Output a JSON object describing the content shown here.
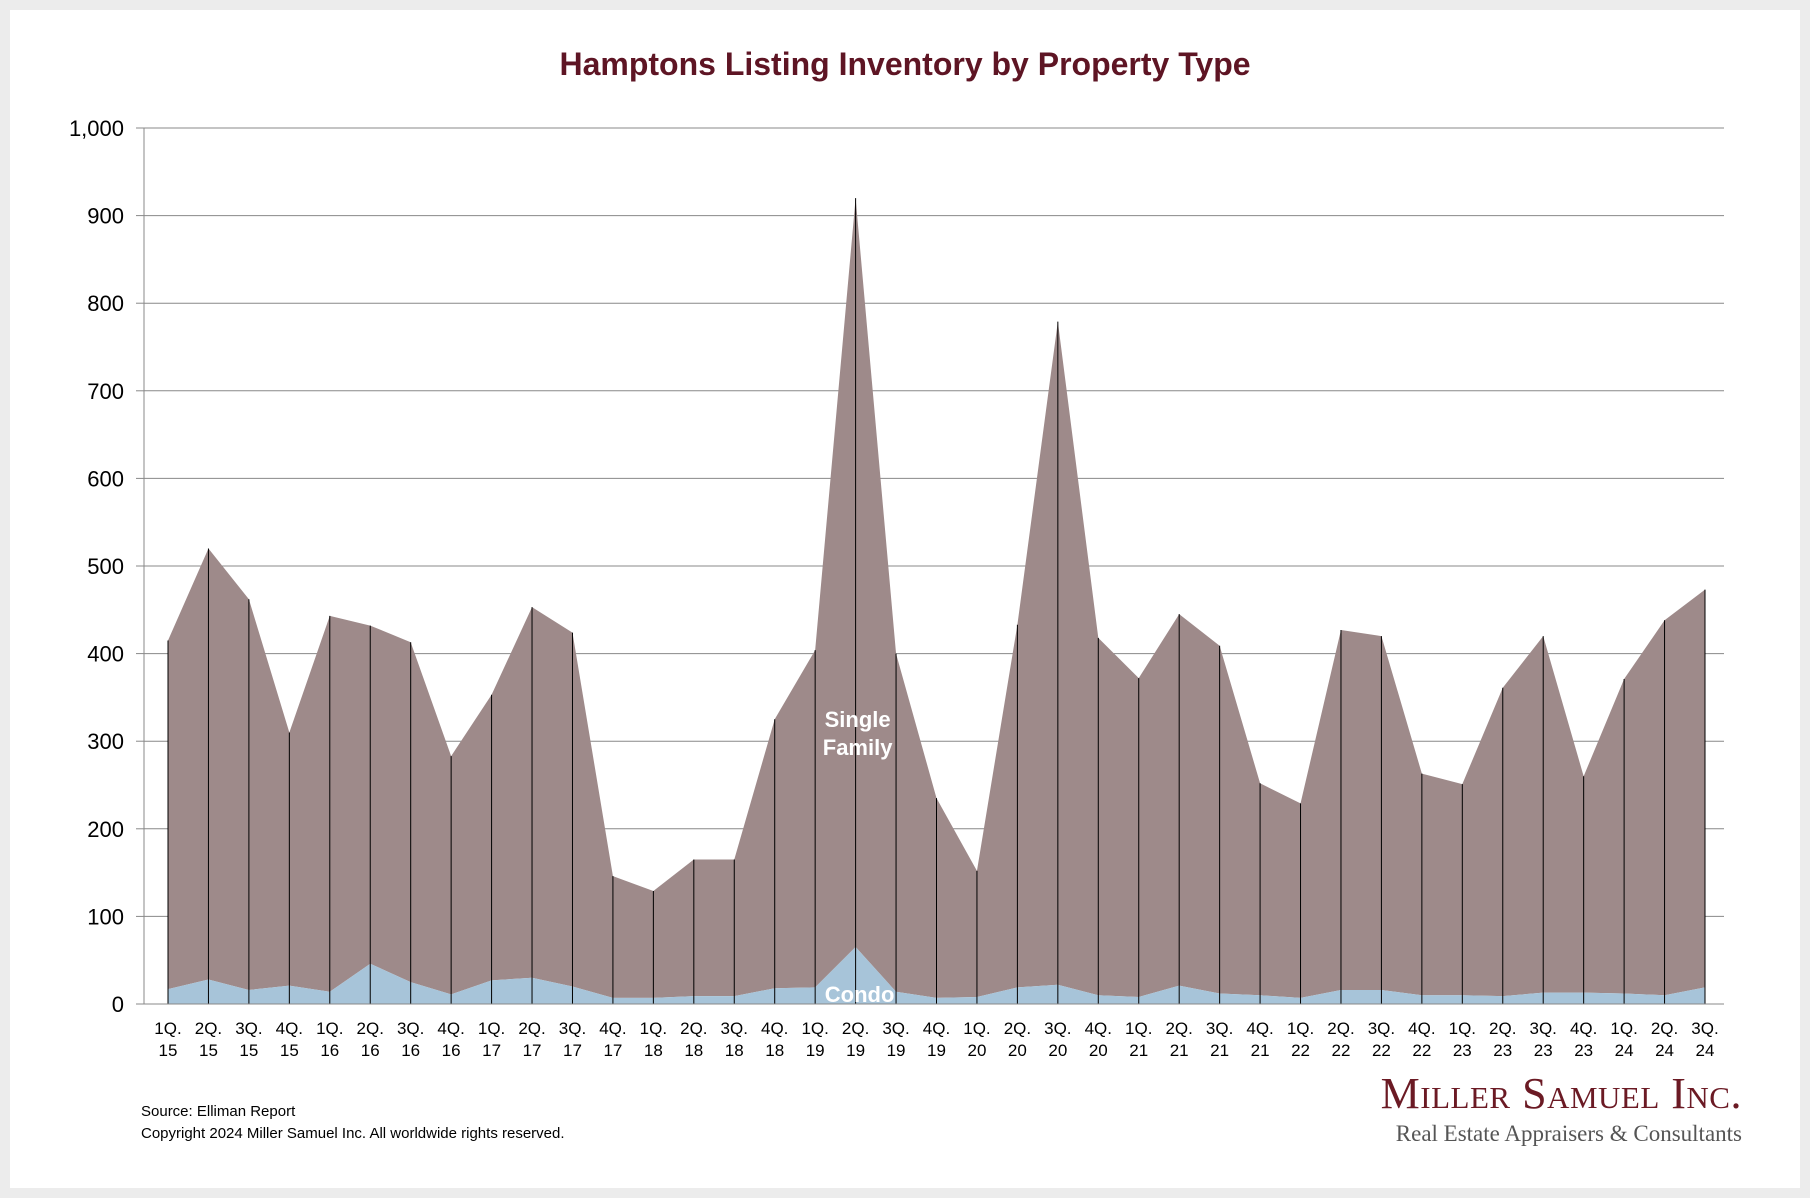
{
  "chart_data": {
    "type": "area",
    "stacked": true,
    "title": "Hamptons Listing Inventory by Property Type",
    "xlabel": "",
    "ylabel": "",
    "ylim": [
      0,
      1000
    ],
    "yticks": [
      "0",
      "100",
      "200",
      "300",
      "400",
      "500",
      "600",
      "700",
      "800",
      "900",
      "1,000"
    ],
    "grid": true,
    "categories": [
      "1Q. 15",
      "2Q. 15",
      "3Q. 15",
      "4Q. 15",
      "1Q. 16",
      "2Q. 16",
      "3Q. 16",
      "4Q. 16",
      "1Q. 17",
      "2Q. 17",
      "3Q. 17",
      "4Q. 17",
      "1Q. 18",
      "2Q. 18",
      "3Q. 18",
      "4Q. 18",
      "1Q. 19",
      "2Q. 19",
      "3Q. 19",
      "4Q. 19",
      "1Q. 20",
      "2Q. 20",
      "3Q. 20",
      "4Q. 20",
      "1Q. 21",
      "2Q. 21",
      "3Q. 21",
      "4Q. 21",
      "1Q. 22",
      "2Q. 22",
      "3Q. 22",
      "4Q. 22",
      "1Q. 23",
      "2Q. 23",
      "3Q. 23",
      "4Q. 23",
      "1Q. 24",
      "2Q. 24",
      "3Q. 24"
    ],
    "series": [
      {
        "name": "Condo",
        "label": "Condo",
        "color": "#a7c4d9",
        "values": [
          17,
          28,
          16,
          21,
          14,
          46,
          25,
          11,
          27,
          30,
          20,
          7,
          7,
          9,
          9,
          18,
          19,
          65,
          14,
          7,
          8,
          19,
          22,
          10,
          8,
          21,
          12,
          10,
          7,
          16,
          16,
          10,
          10,
          9,
          13,
          13,
          12,
          10,
          19
        ]
      },
      {
        "name": "Single Family",
        "label_lines": [
          "Single",
          "Family"
        ],
        "color": "#9e8a8a",
        "values": [
          398,
          492,
          446,
          289,
          429,
          386,
          388,
          272,
          326,
          423,
          404,
          139,
          122,
          156,
          156,
          307,
          385,
          855,
          386,
          228,
          144,
          414,
          757,
          408,
          364,
          424,
          397,
          242,
          222,
          411,
          404,
          253,
          241,
          352,
          407,
          247,
          359,
          428,
          454
        ]
      }
    ]
  },
  "footer": {
    "source": "Source: Elliman Report",
    "copyright": "Copyright 2024 Miller Samuel Inc.  All worldwide rights reserved."
  },
  "logo": {
    "name": "Miller Samuel Inc.",
    "tagline": "Real Estate Appraisers & Consultants"
  }
}
